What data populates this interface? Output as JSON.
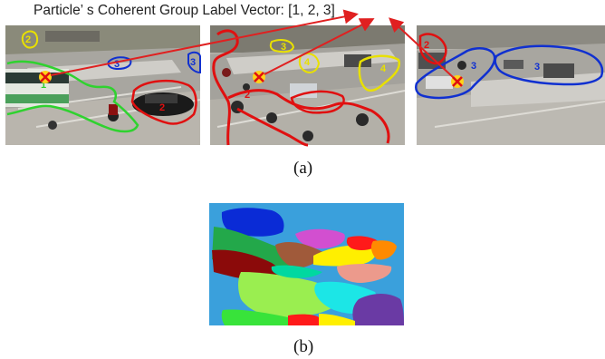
{
  "figure": {
    "title": "Particle’ s Coherent Group Label Vector: [1, 2, 3]",
    "caption_a": "(a)",
    "caption_b": "(b)"
  },
  "frames": [
    {
      "labels": [
        "2",
        "1",
        "3",
        "3",
        "2"
      ]
    },
    {
      "labels": [
        "3",
        "4",
        "4",
        "2"
      ]
    },
    {
      "labels": [
        "2",
        "3",
        "3"
      ]
    }
  ],
  "colors": {
    "group1": "#2fd22f",
    "group2": "#e01010",
    "group3": "#1030d0",
    "group4": "#e8e000",
    "arrow": "#e02020",
    "marker_fill": "#ffd21a",
    "marker_x": "#e01010"
  },
  "segmentation": {
    "background": "#3aa0dc",
    "segment_colors": [
      "#0a2bd6",
      "#23a84a",
      "#8b0a0a",
      "#d24fd0",
      "#ffef00",
      "#a05a3a",
      "#ec9a8c",
      "#ff8a00",
      "#38e33a",
      "#9aee50",
      "#1ce6e6",
      "#6a3aa4",
      "#ff1a1a",
      "#00d8a0"
    ]
  }
}
